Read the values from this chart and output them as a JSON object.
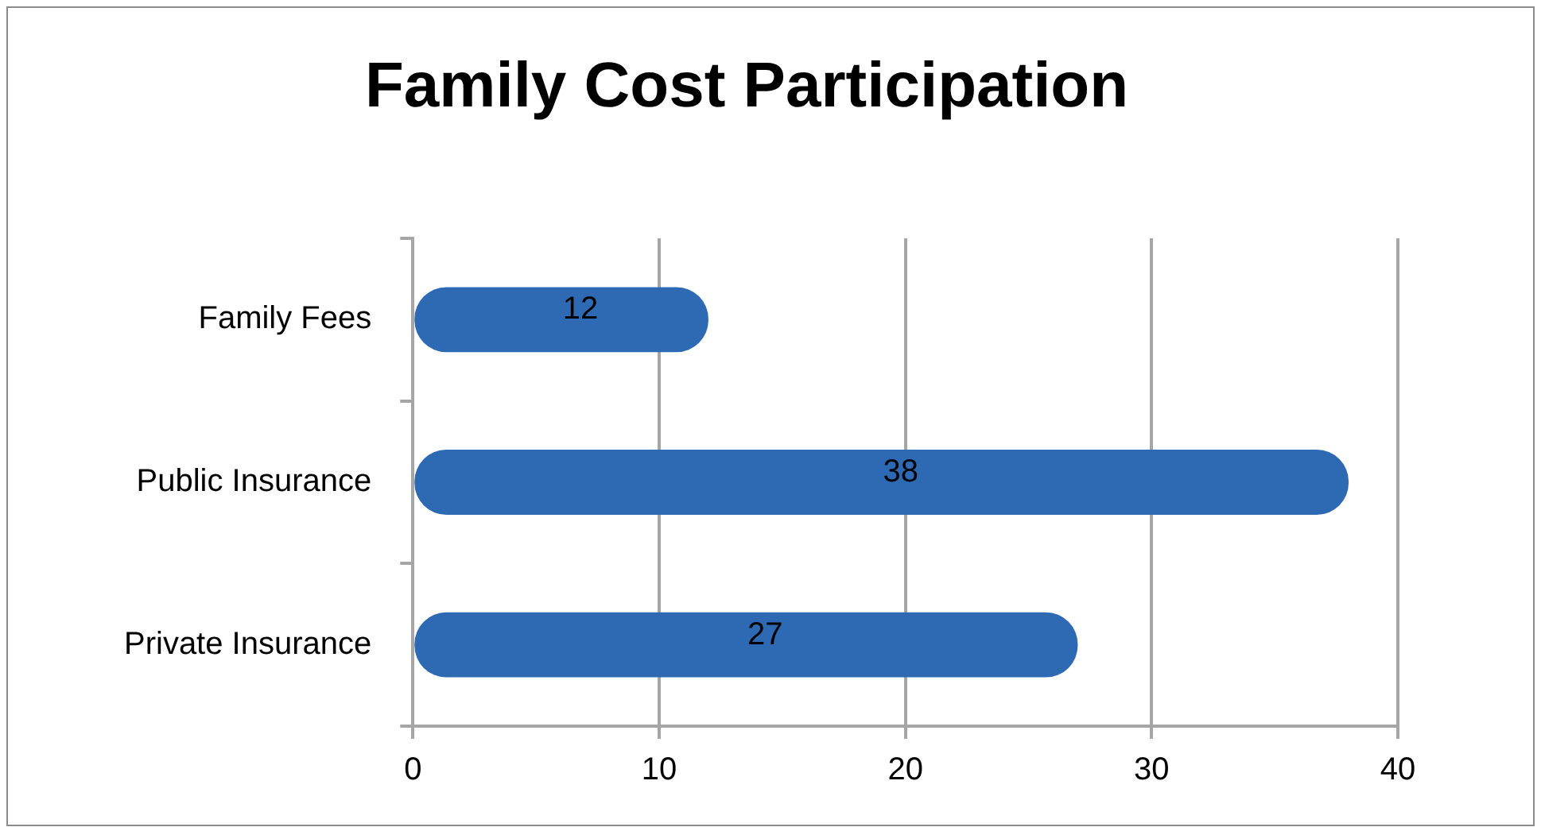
{
  "chart_data": {
    "type": "bar",
    "title": "Family Cost Participation",
    "orientation": "horizontal",
    "categories": [
      "Family Fees",
      "Public Insurance",
      "Private Insurance"
    ],
    "values": [
      12,
      38,
      27
    ],
    "color": "#2e6ab4",
    "xlim": [
      0,
      40
    ],
    "xticks": [
      0,
      10,
      20,
      30,
      40
    ],
    "grid": "x",
    "data_labels": true
  }
}
